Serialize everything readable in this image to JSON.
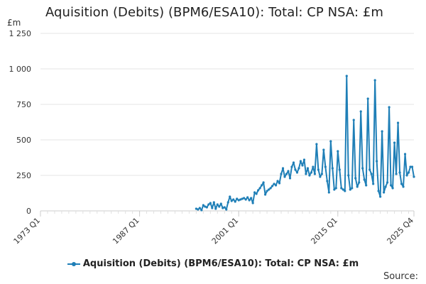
{
  "chart_data": {
    "type": "line",
    "title": "Aquisition (Debits) (BPM6/ESA10): Total: CP NSA: £m",
    "ylabel": "£m",
    "xlabel": "",
    "ylim": [
      0,
      1250
    ],
    "y_ticks": [
      0,
      250,
      500,
      750,
      1000,
      1250
    ],
    "y_tick_labels": [
      "0",
      "250",
      "500",
      "750",
      "1 000",
      "1 250"
    ],
    "x_ticks": [
      "1973 Q1",
      "1987 Q1",
      "2001 Q1",
      "2015 Q1",
      "2025 Q4"
    ],
    "grid": true,
    "legend": "bottom-center",
    "series": [
      {
        "name": "Aquisition (Debits) (BPM6/ESA10): Total: CP NSA: £m",
        "color": "#1f7fb7",
        "x": [
          "1995 Q1",
          "1995 Q2",
          "1995 Q3",
          "1995 Q4",
          "1996 Q1",
          "1996 Q2",
          "1996 Q3",
          "1996 Q4",
          "1997 Q1",
          "1997 Q2",
          "1997 Q3",
          "1997 Q4",
          "1998 Q1",
          "1998 Q2",
          "1998 Q3",
          "1998 Q4",
          "1999 Q1",
          "1999 Q2",
          "1999 Q3",
          "1999 Q4",
          "2000 Q1",
          "2000 Q2",
          "2000 Q3",
          "2000 Q4",
          "2001 Q1",
          "2001 Q2",
          "2001 Q3",
          "2001 Q4",
          "2002 Q1",
          "2002 Q2",
          "2002 Q3",
          "2002 Q4",
          "2003 Q1",
          "2003 Q2",
          "2003 Q3",
          "2003 Q4",
          "2004 Q1",
          "2004 Q2",
          "2004 Q3",
          "2004 Q4",
          "2005 Q1",
          "2005 Q2",
          "2005 Q3",
          "2005 Q4",
          "2006 Q1",
          "2006 Q2",
          "2006 Q3",
          "2006 Q4",
          "2007 Q1",
          "2007 Q2",
          "2007 Q3",
          "2007 Q4",
          "2008 Q1",
          "2008 Q2",
          "2008 Q3",
          "2008 Q4",
          "2009 Q1",
          "2009 Q2",
          "2009 Q3",
          "2009 Q4",
          "2010 Q1",
          "2010 Q2",
          "2010 Q3",
          "2010 Q4",
          "2011 Q1",
          "2011 Q2",
          "2011 Q3",
          "2011 Q4",
          "2012 Q1",
          "2012 Q2",
          "2012 Q3",
          "2012 Q4",
          "2013 Q1",
          "2013 Q2",
          "2013 Q3",
          "2013 Q4",
          "2014 Q1",
          "2014 Q2",
          "2014 Q3",
          "2014 Q4",
          "2015 Q1",
          "2015 Q2",
          "2015 Q3",
          "2015 Q4",
          "2016 Q1",
          "2016 Q2",
          "2016 Q3",
          "2016 Q4",
          "2017 Q1",
          "2017 Q2",
          "2017 Q3",
          "2017 Q4",
          "2018 Q1",
          "2018 Q2",
          "2018 Q3",
          "2018 Q4",
          "2019 Q1",
          "2019 Q2",
          "2019 Q3",
          "2019 Q4",
          "2020 Q1",
          "2020 Q2",
          "2020 Q3",
          "2020 Q4",
          "2021 Q1",
          "2021 Q2",
          "2021 Q3",
          "2021 Q4",
          "2022 Q1",
          "2022 Q2",
          "2022 Q3",
          "2022 Q4",
          "2023 Q1",
          "2023 Q2",
          "2023 Q3",
          "2023 Q4",
          "2024 Q1",
          "2024 Q2",
          "2024 Q3",
          "2024 Q4",
          "2025 Q1",
          "2025 Q2",
          "2025 Q3",
          "2025 Q4"
        ],
        "values": [
          15,
          10,
          20,
          5,
          40,
          30,
          25,
          45,
          55,
          20,
          60,
          15,
          45,
          30,
          50,
          20,
          25,
          10,
          60,
          100,
          70,
          80,
          65,
          85,
          75,
          80,
          85,
          90,
          80,
          95,
          75,
          90,
          55,
          130,
          120,
          145,
          160,
          180,
          200,
          115,
          140,
          150,
          160,
          175,
          190,
          180,
          210,
          195,
          260,
          300,
          240,
          260,
          280,
          230,
          310,
          340,
          290,
          270,
          300,
          350,
          320,
          360,
          260,
          300,
          250,
          270,
          310,
          260,
          470,
          290,
          240,
          260,
          430,
          310,
          210,
          130,
          490,
          300,
          150,
          160,
          420,
          290,
          160,
          150,
          140,
          950,
          250,
          150,
          160,
          640,
          230,
          170,
          200,
          700,
          300,
          220,
          180,
          790,
          290,
          260,
          190,
          920,
          350,
          140,
          100,
          560,
          130,
          170,
          200,
          730,
          180,
          160,
          480,
          260,
          620,
          270,
          190,
          170,
          400,
          250,
          270,
          310,
          310,
          240
        ]
      }
    ]
  },
  "source_label": "Source:"
}
